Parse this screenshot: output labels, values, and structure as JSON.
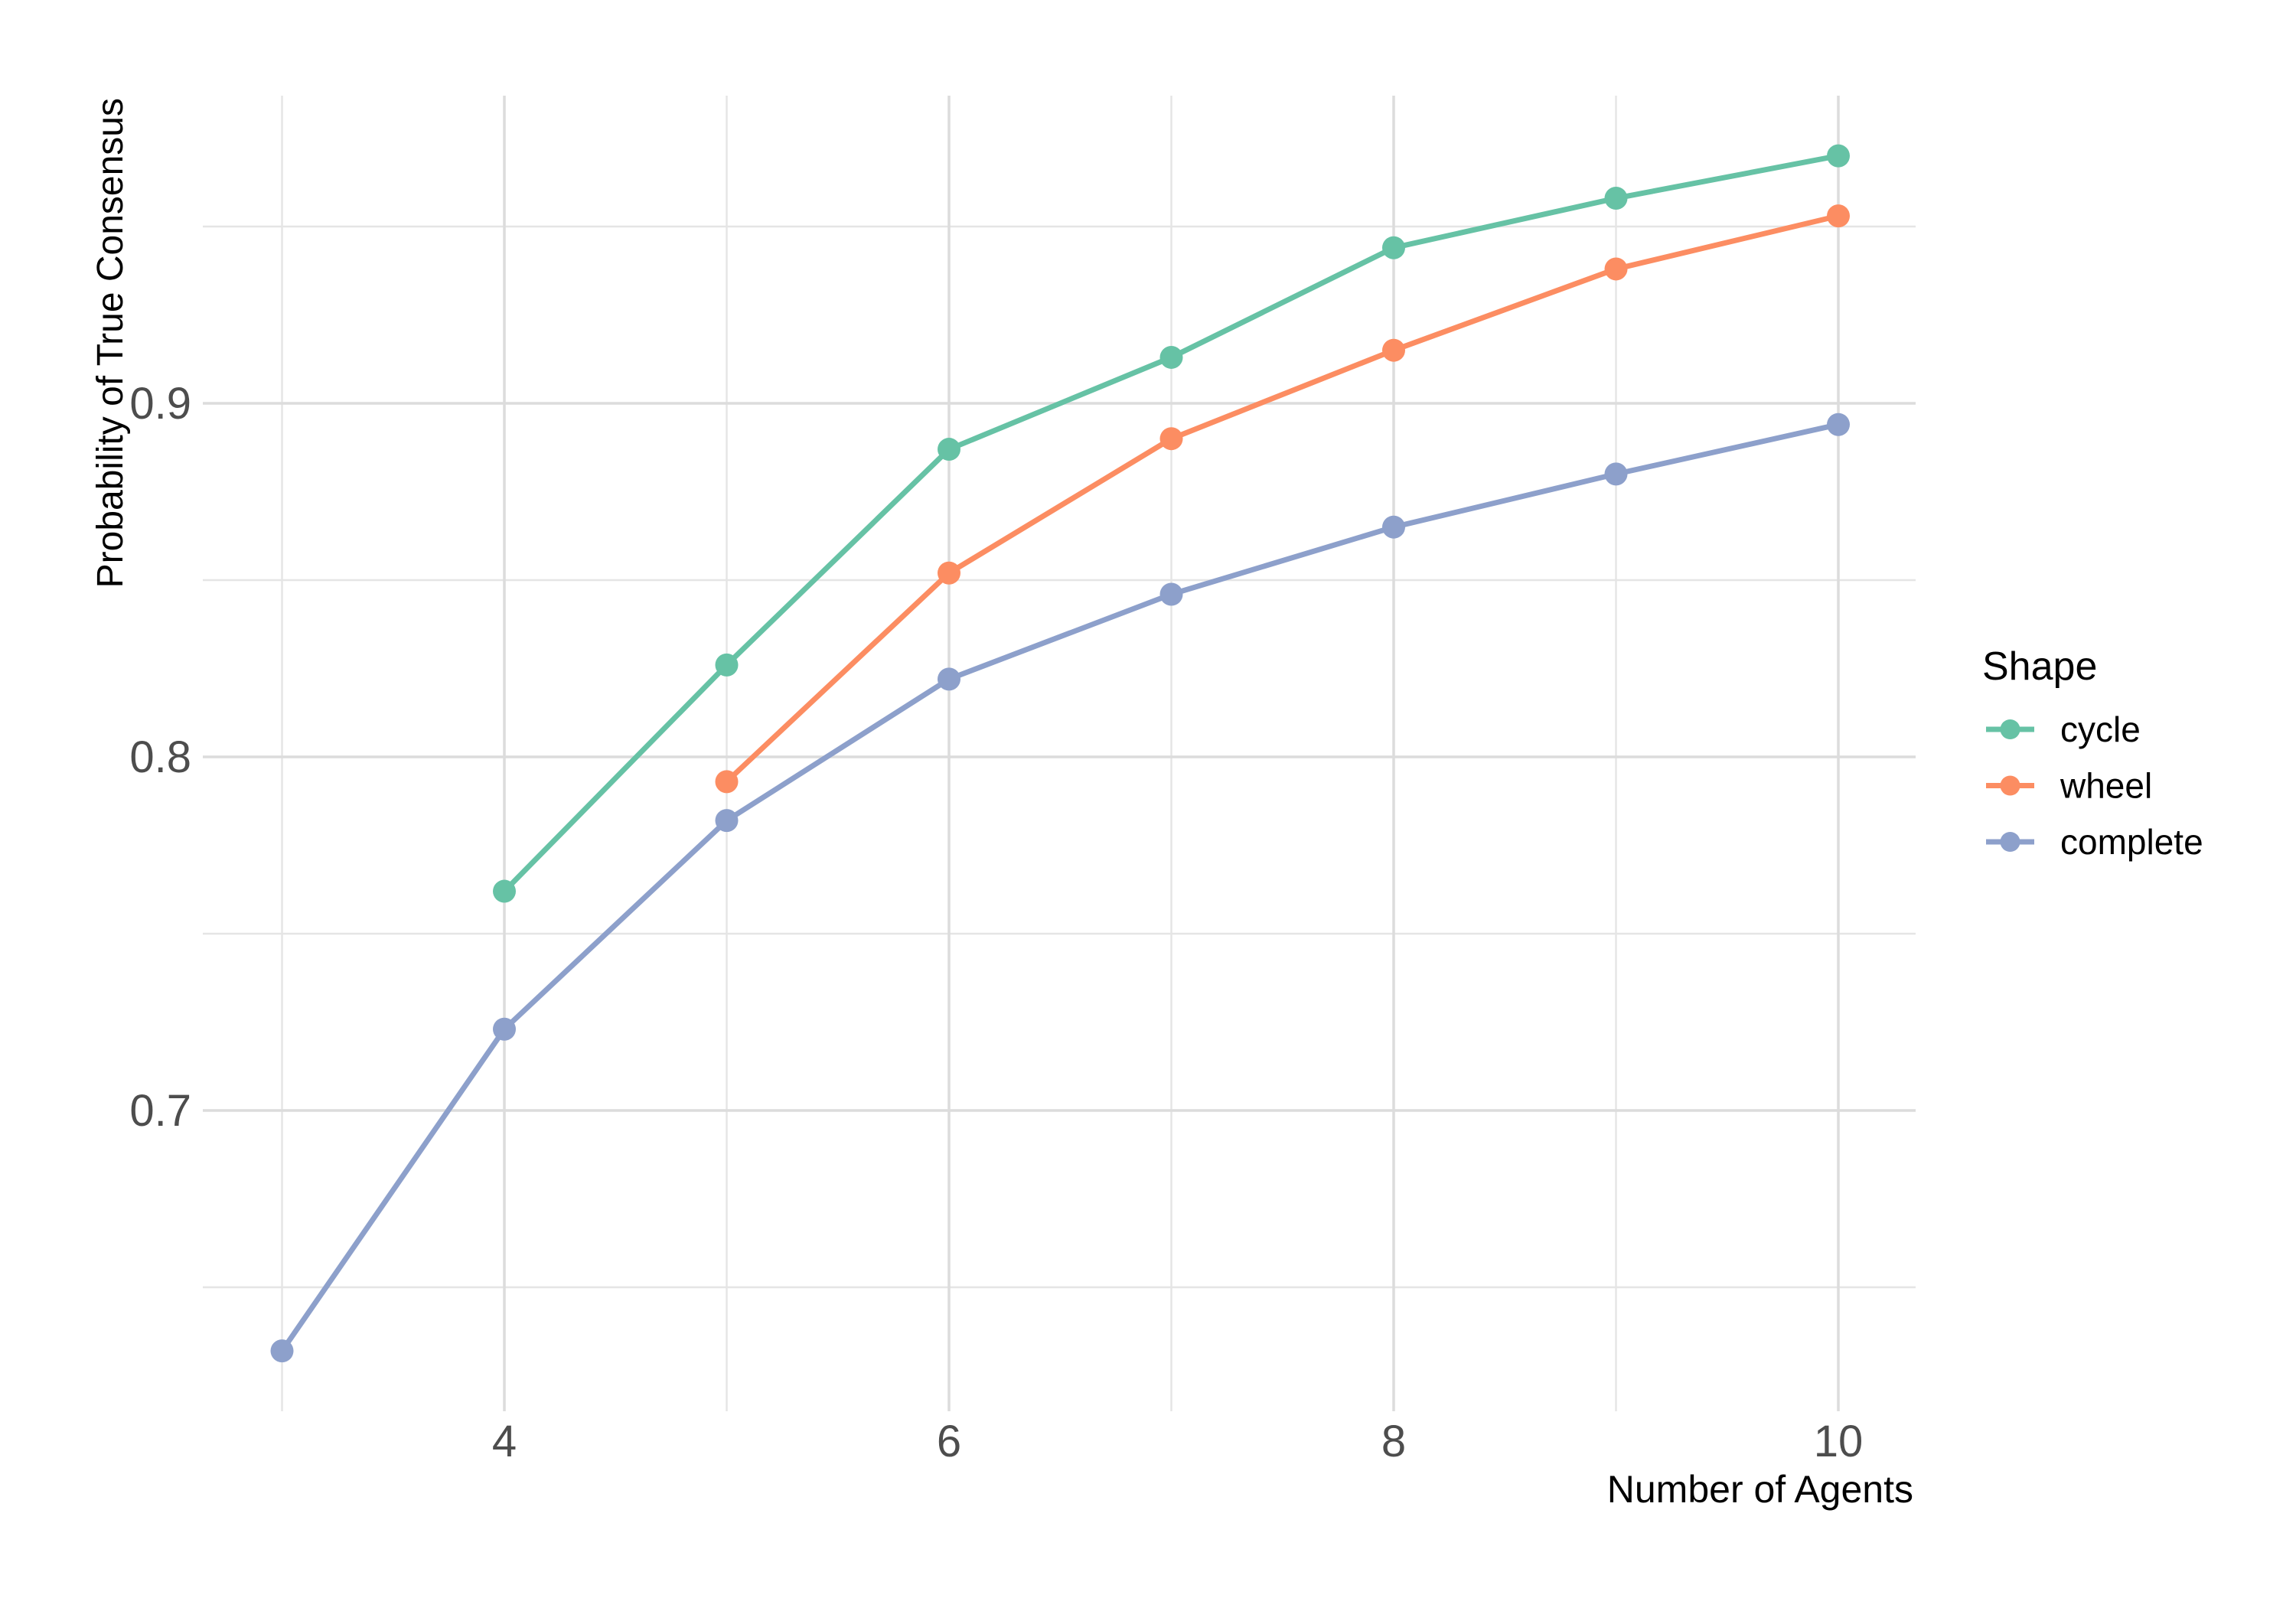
{
  "chart_data": {
    "type": "line",
    "title": "",
    "xlabel": "Number of Agents",
    "ylabel": "Probability of True Consensus",
    "legend": {
      "title": "Shape",
      "position": "right",
      "entries": [
        "cycle",
        "wheel",
        "complete"
      ]
    },
    "axes": {
      "x_major_ticks": [
        4,
        6,
        8,
        10
      ],
      "x_minor_gridlines": [
        3,
        5,
        7,
        9
      ],
      "y_major_ticks": [
        0.7,
        0.8,
        0.9
      ],
      "y_minor_gridlines": [
        0.65,
        0.75,
        0.85,
        0.95
      ],
      "x_range_shown": [
        2.65,
        10.35
      ],
      "y_range_shown": [
        0.615,
        0.987
      ],
      "grid": true
    },
    "series": [
      {
        "name": "cycle",
        "color": "#66C2A5",
        "x": [
          4,
          5,
          6,
          7,
          8,
          9,
          10
        ],
        "y": [
          0.762,
          0.826,
          0.887,
          0.913,
          0.944,
          0.958,
          0.97
        ]
      },
      {
        "name": "wheel",
        "color": "#FC8D62",
        "x": [
          5,
          6,
          7,
          8,
          9,
          10
        ],
        "y": [
          0.793,
          0.852,
          0.89,
          0.915,
          0.938,
          0.953
        ]
      },
      {
        "name": "complete",
        "color": "#8DA0CB",
        "x": [
          3,
          4,
          5,
          6,
          7,
          8,
          9,
          10
        ],
        "y": [
          0.632,
          0.723,
          0.782,
          0.822,
          0.846,
          0.865,
          0.88,
          0.894
        ]
      }
    ],
    "colors": {
      "background": "#FFFFFF",
      "grid_major": "#DCDCDC",
      "grid_minor": "#E5E5E5",
      "tick_label": "#4D4D4D",
      "axis_title": "#000000",
      "legend_text": "#000000"
    }
  }
}
